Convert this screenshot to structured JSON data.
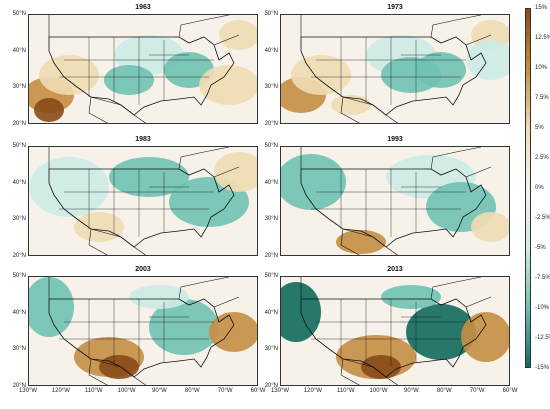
{
  "colors": {
    "strong_pos": "#8a4a17",
    "pos": "#c58e45",
    "weak_pos": "#efdcb3",
    "neutral": "#f6f2ea",
    "weak_neg": "#cdebe5",
    "neg": "#6fc2b2",
    "strong_neg": "#11695c",
    "land_line": "#111111"
  },
  "panels": [
    {
      "title": "1963",
      "pattern": "warm-southwest",
      "lat_labels": [
        "50°N",
        "40°N",
        "30°N",
        "20°N"
      ],
      "show_lon": false
    },
    {
      "title": "1973",
      "pattern": "mixed-mild",
      "lat_labels": [
        "50°N",
        "40°N",
        "30°N",
        "20°N"
      ],
      "show_lon": false
    },
    {
      "title": "1983",
      "pattern": "cool-east",
      "lat_labels": [
        "50°N",
        "40°N",
        "30°N",
        "20°N"
      ],
      "show_lon": false
    },
    {
      "title": "1993",
      "pattern": "cool-east-2",
      "lat_labels": [
        "50°N",
        "40°N",
        "30°N",
        "20°N"
      ],
      "show_lon": false
    },
    {
      "title": "2003",
      "pattern": "strong-dipole",
      "lat_labels": [
        "50°N",
        "40°N",
        "30°N",
        "20°N"
      ],
      "show_lon": true
    },
    {
      "title": "2013",
      "pattern": "strong-dipole-2",
      "lat_labels": [
        "50°N",
        "40°N",
        "30°N",
        "20°N"
      ],
      "show_lon": true
    }
  ],
  "lon_labels": [
    "130°W",
    "120°W",
    "110°W",
    "100°W",
    "90°W",
    "80°W",
    "70°W",
    "60°W"
  ],
  "colorbar": {
    "labels": [
      "15%",
      "12.5%",
      "10%",
      "7.5%",
      "5%",
      "2.5%",
      "0%",
      "-2.5%",
      "-5%",
      "-7.5%",
      "-10%",
      "-12.5%",
      "-15%"
    ]
  }
}
